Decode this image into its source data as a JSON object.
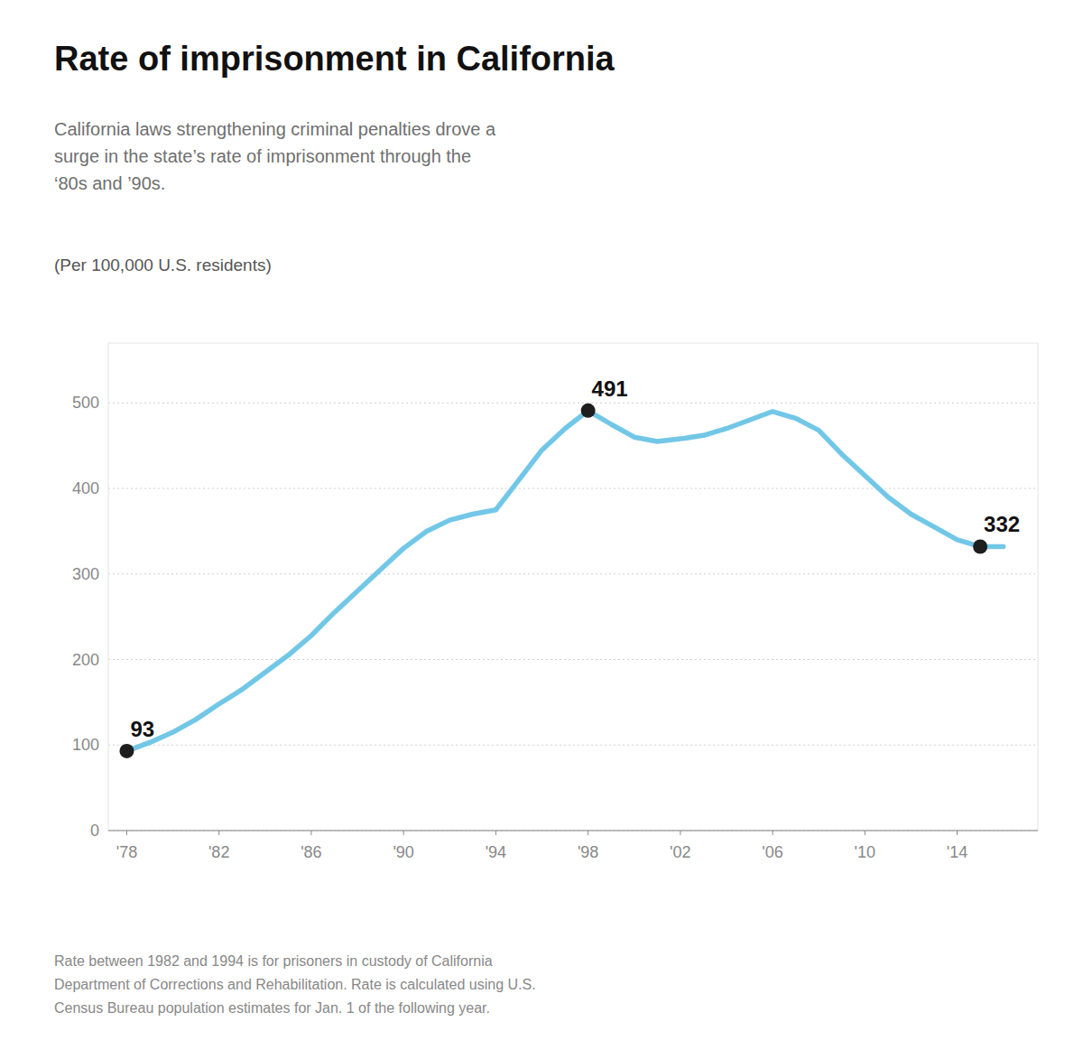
{
  "chart_data": {
    "type": "line",
    "title": "Rate of imprisonment in California",
    "subtitle": "California laws strengthening criminal penalties drove a\nsurge in the state’s rate of imprisonment through the\n‘80s and ’90s.",
    "unit_label": "(Per 100,000 U.S. residents)",
    "footnote": "Rate between 1982 and 1994 is for prisoners in custody of California\nDepartment of Corrections and Rehabilitation. Rate is calculated using U.S.\nCensus Bureau population estimates for Jan. 1 of the following year.",
    "x": [
      1978,
      1979,
      1980,
      1981,
      1982,
      1983,
      1984,
      1985,
      1986,
      1987,
      1988,
      1989,
      1990,
      1991,
      1992,
      1993,
      1994,
      1995,
      1996,
      1997,
      1998,
      1999,
      2000,
      2001,
      2002,
      2003,
      2004,
      2005,
      2006,
      2007,
      2008,
      2009,
      2010,
      2011,
      2012,
      2013,
      2014,
      2015,
      2016
    ],
    "values": [
      93,
      103,
      115,
      130,
      148,
      165,
      185,
      205,
      228,
      255,
      280,
      305,
      330,
      350,
      363,
      370,
      375,
      410,
      445,
      470,
      491,
      475,
      460,
      455,
      458,
      462,
      470,
      480,
      490,
      482,
      468,
      440,
      415,
      390,
      370,
      355,
      340,
      332,
      332
    ],
    "color": "#72c7e7",
    "annotations": [
      {
        "x": 1978,
        "y": 93,
        "label": "93"
      },
      {
        "x": 1998,
        "y": 491,
        "label": "491"
      },
      {
        "x": 2015,
        "y": 332,
        "label": "332"
      }
    ],
    "xlim": [
      1977.2,
      2017.5
    ],
    "xticks": [
      {
        "value": 1978,
        "label": "'78"
      },
      {
        "value": 1982,
        "label": "'82"
      },
      {
        "value": 1986,
        "label": "'86"
      },
      {
        "value": 1990,
        "label": "'90"
      },
      {
        "value": 1994,
        "label": "'94"
      },
      {
        "value": 1998,
        "label": "'98"
      },
      {
        "value": 2002,
        "label": "'02"
      },
      {
        "value": 2006,
        "label": "'06"
      },
      {
        "value": 2010,
        "label": "'10"
      },
      {
        "value": 2014,
        "label": "'14"
      }
    ],
    "ylim": [
      0,
      570
    ],
    "yticks": [
      0,
      100,
      200,
      300,
      400,
      500
    ],
    "grid": true
  }
}
